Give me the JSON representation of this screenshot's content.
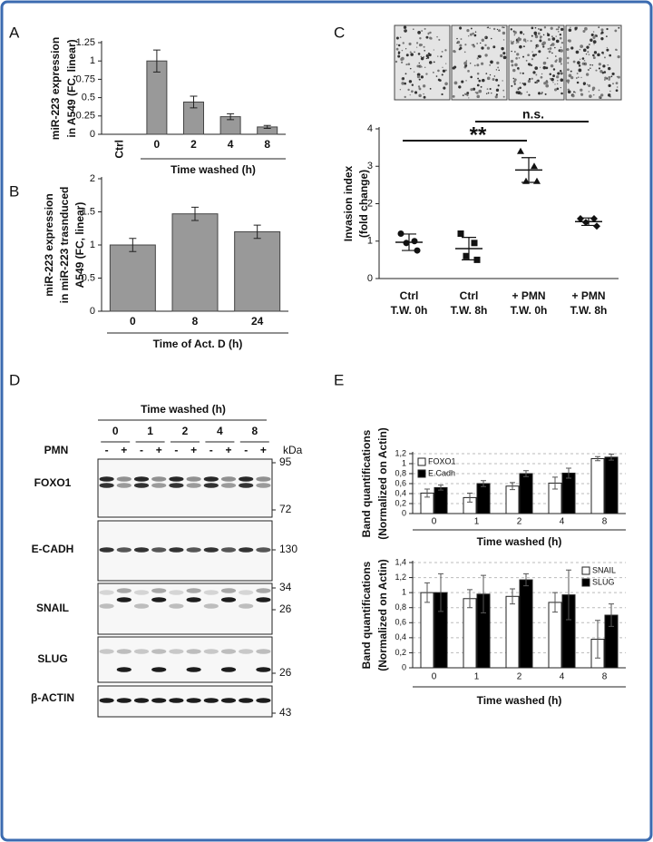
{
  "chart_data": [
    {
      "panel": "A",
      "type": "bar",
      "y_label": [
        "miR-223 expression",
        "in A549 (FC, linear)"
      ],
      "x_label": "Time washed (h)",
      "categories": [
        "Ctrl",
        "0",
        "2",
        "4",
        "8"
      ],
      "values": [
        0,
        1.0,
        0.44,
        0.24,
        0.1
      ],
      "errors": [
        0,
        0.15,
        0.08,
        0.04,
        0.02
      ],
      "color": "#999999",
      "ylim": [
        0,
        1.25
      ],
      "yticks": [
        0,
        0.25,
        0.5,
        0.75,
        1,
        1.25
      ]
    },
    {
      "panel": "B",
      "type": "bar",
      "y_label": [
        "miR-223 expression",
        "in miR-223 trasnduced",
        "A549 (FC, linear)"
      ],
      "x_label": "Time of Act. D (h)",
      "categories": [
        "0",
        "8",
        "24"
      ],
      "values": [
        1.0,
        1.47,
        1.2
      ],
      "errors": [
        0.1,
        0.1,
        0.1
      ],
      "color": "#999999",
      "ylim": [
        0,
        2
      ],
      "yticks": [
        0,
        0.5,
        1,
        1.5,
        2
      ]
    },
    {
      "panel": "C",
      "type": "dot",
      "y_label": [
        "Invasion index",
        "(fold change)"
      ],
      "categories": [
        [
          "Ctrl",
          "T.W. 0h"
        ],
        [
          "Ctrl",
          "T.W. 8h"
        ],
        [
          "+ PMN",
          "T.W. 0h"
        ],
        [
          "+ PMN",
          "T.W. 8h"
        ]
      ],
      "points": [
        [
          1.2,
          1.0,
          0.95,
          0.75
        ],
        [
          1.2,
          0.95,
          0.6,
          0.5
        ],
        [
          3.4,
          3.0,
          2.6,
          2.6
        ],
        [
          1.6,
          1.6,
          1.5,
          1.4
        ]
      ],
      "means": [
        0.97,
        0.8,
        2.9,
        1.52
      ],
      "sds": [
        0.22,
        0.3,
        0.33,
        0.1
      ],
      "ylim": [
        0,
        4
      ],
      "yticks": [
        0,
        1,
        2,
        3,
        4
      ],
      "annotations": [
        "**",
        "n.s."
      ]
    },
    {
      "panel": "E",
      "type": "grouped_bar",
      "y_label": [
        "Band quantifications",
        "(Normalized on Actin)"
      ],
      "x_label": "Time washed (h)",
      "categories": [
        "0",
        "1",
        "2",
        "4",
        "8"
      ],
      "series": [
        {
          "name": "FOXO1",
          "color": "#ffffff",
          "values": [
            0.41,
            0.32,
            0.55,
            0.61,
            1.1
          ],
          "errors": [
            0.08,
            0.09,
            0.07,
            0.12,
            0.04
          ]
        },
        {
          "name": "E.Cadh",
          "color": "#000000",
          "values": [
            0.52,
            0.6,
            0.8,
            0.81,
            1.13
          ],
          "errors": [
            0.05,
            0.06,
            0.06,
            0.1,
            0.06
          ]
        }
      ],
      "ylim": [
        0,
        1.2
      ],
      "yticks": [
        0,
        {
          "value": 0.2,
          "label": "0,2"
        },
        {
          "value": 0.4,
          "label": "0,4"
        },
        {
          "value": 0.6,
          "label": "0,6"
        },
        {
          "value": 0.8,
          "label": "0,8"
        },
        1,
        {
          "value": 1.2,
          "label": "1,2"
        }
      ],
      "grid": true,
      "legend": "upper left"
    },
    {
      "type": "grouped_bar",
      "y_label": [
        "Band quantifications",
        "(Normalized on Actin)"
      ],
      "x_label": "Time washed (h)",
      "categories": [
        "0",
        "1",
        "2",
        "4",
        "8"
      ],
      "series": [
        {
          "name": "SNAIL",
          "color": "#ffffff",
          "values": [
            1.0,
            0.92,
            0.95,
            0.87,
            0.38
          ],
          "errors": [
            0.13,
            0.12,
            0.1,
            0.13,
            0.25
          ]
        },
        {
          "name": "SLUG",
          "color": "#000000",
          "values": [
            1.0,
            0.98,
            1.17,
            0.97,
            0.7
          ],
          "errors": [
            0.25,
            0.25,
            0.08,
            0.33,
            0.15
          ]
        }
      ],
      "ylim": [
        0,
        1.4
      ],
      "yticks": [
        0,
        {
          "value": 0.2,
          "label": "0,2"
        },
        {
          "value": 0.4,
          "label": "0,4"
        },
        {
          "value": 0.6,
          "label": "0,6"
        },
        {
          "value": 0.8,
          "label": "0,8"
        },
        1,
        {
          "value": 1.2,
          "label": "1,2"
        },
        {
          "value": 1.4,
          "label": "1,4"
        }
      ],
      "grid": true,
      "legend": "upper right"
    }
  ],
  "blot": {
    "panel": "D",
    "title": "Time washed (h)",
    "time_points": [
      "0",
      "1",
      "2",
      "4",
      "8"
    ],
    "treatment_label": "PMN",
    "signs": [
      "-",
      "+"
    ],
    "unit": "kDa",
    "rows": [
      {
        "label": "FOXO1",
        "markers": [
          95,
          72
        ]
      },
      {
        "label": "E-CADH",
        "markers": [
          130
        ]
      },
      {
        "label": "SNAIL",
        "markers": [
          34,
          26
        ]
      },
      {
        "label": "SLUG",
        "markers": [
          26
        ]
      },
      {
        "label": "β-ACTIN",
        "markers": [
          43
        ]
      }
    ]
  }
}
